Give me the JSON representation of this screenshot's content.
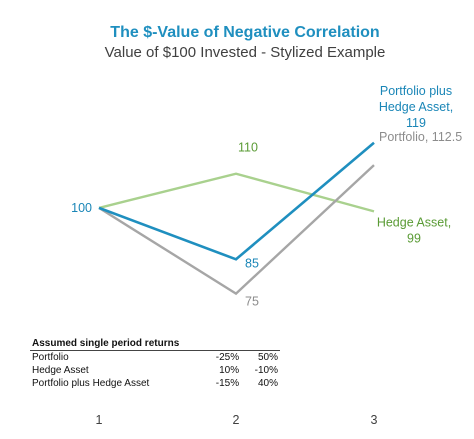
{
  "chart_data": {
    "type": "line",
    "title": "The $-Value of Negative Correlation",
    "subtitle": "Value of $100 Invested - Stylized Example",
    "x": [
      "1",
      "2",
      "3"
    ],
    "xlabel": "",
    "ylabel": "",
    "ylim": [
      60,
      135
    ],
    "grid": false,
    "legend": "none",
    "series": [
      {
        "key": "portfolio",
        "name": "Portfolio",
        "values": [
          100,
          75,
          112.5
        ],
        "color": "#a6a6a6",
        "point_labels": [
          "",
          "75",
          "Portfolio, 112.5"
        ]
      },
      {
        "key": "hedge",
        "name": "Hedge Asset",
        "values": [
          100,
          110,
          99
        ],
        "color": "#a9d18e",
        "point_labels": [
          "",
          "110",
          "Hedge Asset,\n99"
        ]
      },
      {
        "key": "combo",
        "name": "Portfolio plus Hedge Asset",
        "values": [
          100,
          85,
          119
        ],
        "color": "#1f8fbf",
        "point_labels": [
          "100",
          "85",
          "Portfolio plus\nHedge Asset,\n119"
        ]
      }
    ],
    "label_colors": {
      "portfolio": "#8c8c8c",
      "hedge": "#5a9b35",
      "combo": "#1a86b7"
    }
  },
  "table": {
    "header": "Assumed single period returns",
    "rows": [
      {
        "label": "Portfolio",
        "v1": "-25%",
        "v2": "50%"
      },
      {
        "label": "Hedge Asset",
        "v1": "10%",
        "v2": "-10%"
      },
      {
        "label": "Portfolio plus Hedge Asset",
        "v1": "-15%",
        "v2": "40%"
      }
    ]
  },
  "colors": {
    "title": "#1f8fbf",
    "subtitle": "#404040",
    "axis_text": "#404040"
  }
}
